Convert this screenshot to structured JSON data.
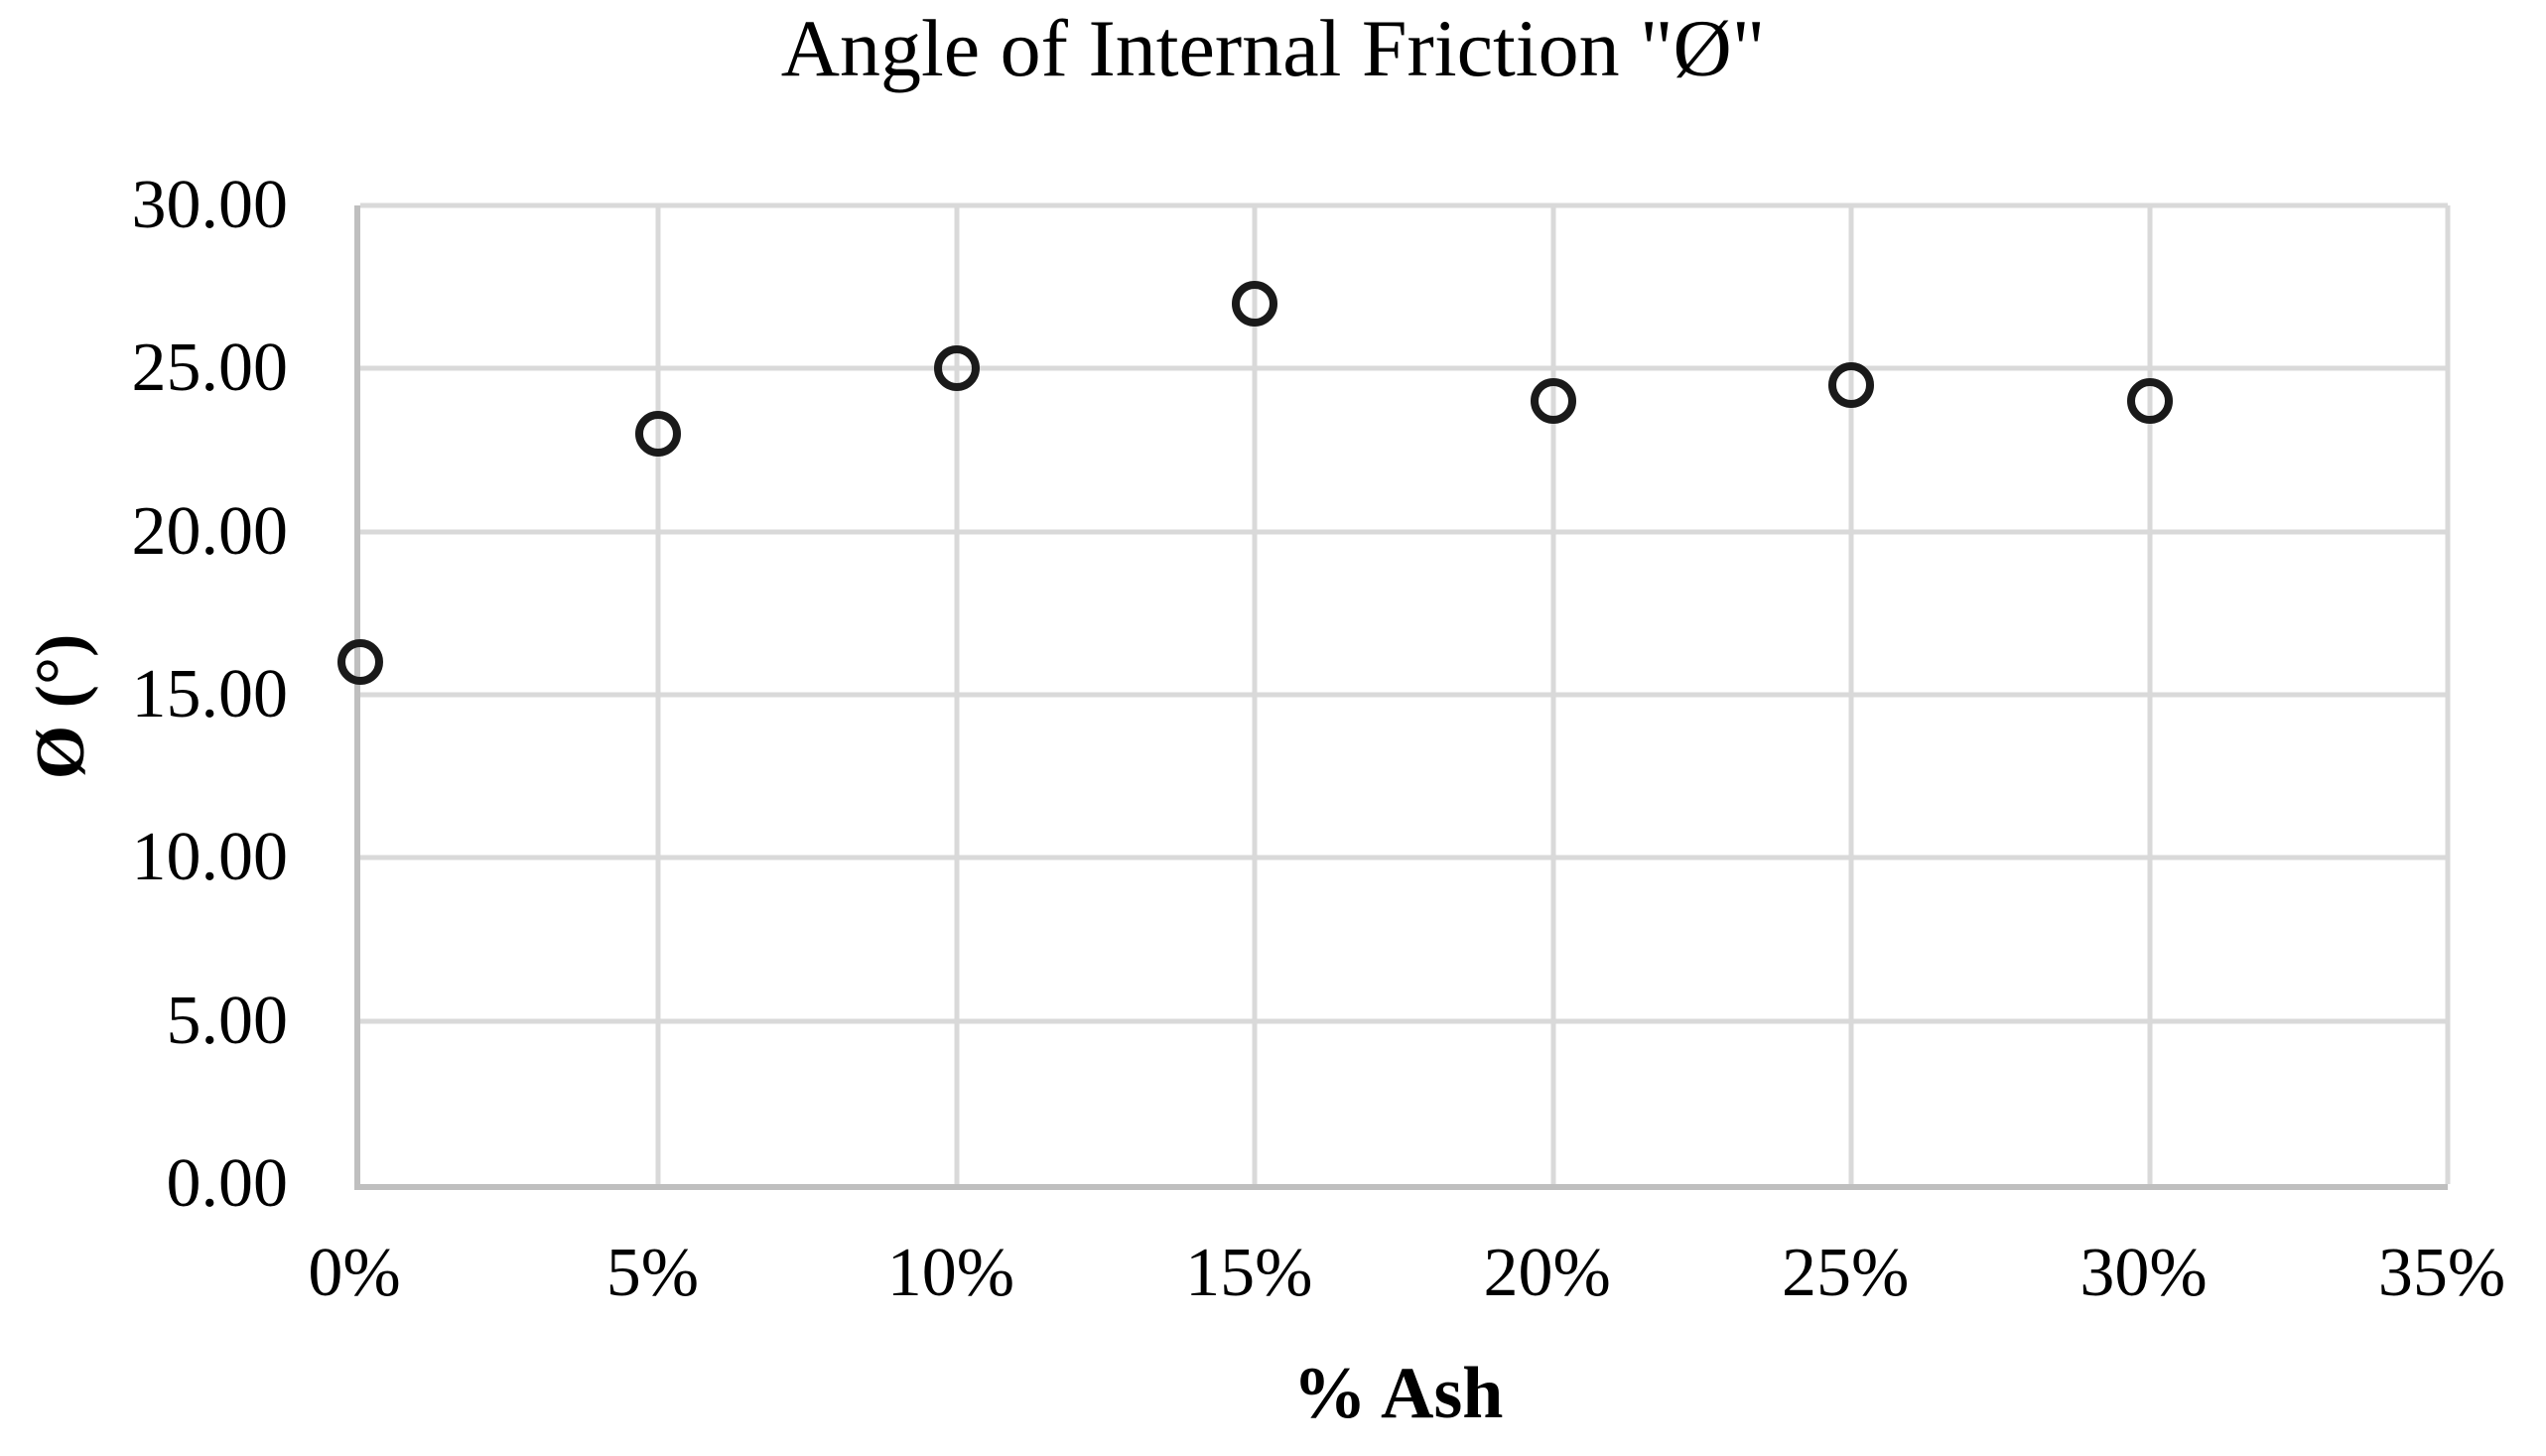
{
  "chart_data": {
    "type": "scatter",
    "title": "Angle of Internal Friction \"Ø\"",
    "xlabel": "% Ash",
    "ylabel": "Ø (°)",
    "xlim": [
      0,
      35
    ],
    "ylim": [
      0,
      30
    ],
    "x_ticks": [
      {
        "value": 0,
        "label": "0%"
      },
      {
        "value": 5,
        "label": "5%"
      },
      {
        "value": 10,
        "label": "10%"
      },
      {
        "value": 15,
        "label": "15%"
      },
      {
        "value": 20,
        "label": "20%"
      },
      {
        "value": 25,
        "label": "25%"
      },
      {
        "value": 30,
        "label": "30%"
      },
      {
        "value": 35,
        "label": "35%"
      }
    ],
    "y_ticks": [
      {
        "value": 0,
        "label": "0.00"
      },
      {
        "value": 5,
        "label": "5.00"
      },
      {
        "value": 10,
        "label": "10.00"
      },
      {
        "value": 15,
        "label": "15.00"
      },
      {
        "value": 20,
        "label": "20.00"
      },
      {
        "value": 25,
        "label": "25.00"
      },
      {
        "value": 30,
        "label": "30.00"
      }
    ],
    "grid": true,
    "legend": false,
    "marker_style": "open-circle",
    "colors": {
      "marker_stroke": "#1a1a1a",
      "gridline": "#d9d9d9",
      "axis_line": "#bfbfbf",
      "text": "#000000"
    },
    "series": [
      {
        "name": "Angle of Internal Friction",
        "points": [
          {
            "x": 0,
            "y": 16.0
          },
          {
            "x": 5,
            "y": 23.0
          },
          {
            "x": 10,
            "y": 25.0
          },
          {
            "x": 15,
            "y": 27.0
          },
          {
            "x": 20,
            "y": 24.0
          },
          {
            "x": 25,
            "y": 24.5
          },
          {
            "x": 30,
            "y": 24.0
          }
        ]
      }
    ]
  }
}
